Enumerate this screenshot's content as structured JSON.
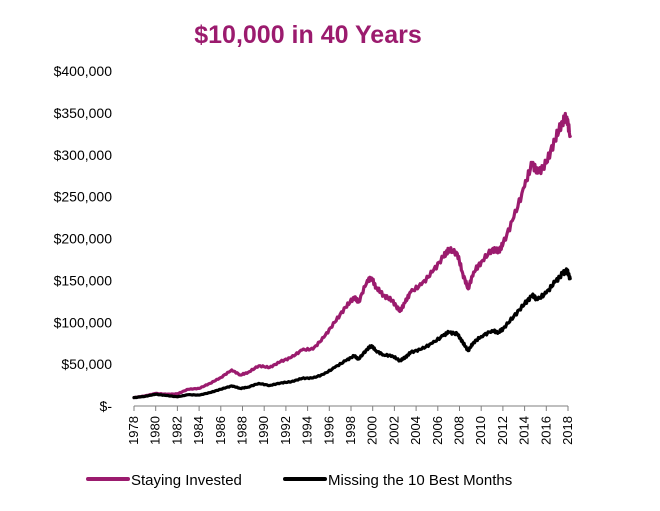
{
  "chart_data": {
    "type": "line",
    "title": "$10,000 in 40 Years",
    "title_color": "#9b1b6e",
    "xlabel": "",
    "ylabel": "",
    "x_range": [
      1978,
      2018
    ],
    "ylim": [
      0,
      400000
    ],
    "y_ticks": [
      {
        "value": 0,
        "label": "$-"
      },
      {
        "value": 50000,
        "label": "$50,000"
      },
      {
        "value": 100000,
        "label": "$100,000"
      },
      {
        "value": 150000,
        "label": "$150,000"
      },
      {
        "value": 200000,
        "label": "$200,000"
      },
      {
        "value": 250000,
        "label": "$250,000"
      },
      {
        "value": 300000,
        "label": "$300,000"
      },
      {
        "value": 350000,
        "label": "$350,000"
      },
      {
        "value": 400000,
        "label": "$400,000"
      }
    ],
    "x_ticks": [
      "1978",
      "1980",
      "1982",
      "1984",
      "1986",
      "1988",
      "1990",
      "1992",
      "1994",
      "1996",
      "1998",
      "2000",
      "2002",
      "2004",
      "2006",
      "2008",
      "2010",
      "2012",
      "2014",
      "2016",
      "2018"
    ],
    "grid": false,
    "legend_position": "bottom",
    "series": [
      {
        "name": "Staying Invested",
        "color": "#9b1b6e",
        "points": [
          [
            1978.0,
            10000
          ],
          [
            1979.0,
            12000
          ],
          [
            1980.0,
            15000
          ],
          [
            1981.0,
            14000
          ],
          [
            1982.0,
            14500
          ],
          [
            1983.0,
            20000
          ],
          [
            1984.0,
            21000
          ],
          [
            1985.0,
            27000
          ],
          [
            1986.0,
            34000
          ],
          [
            1987.0,
            43000
          ],
          [
            1987.8,
            37000
          ],
          [
            1988.5,
            40000
          ],
          [
            1989.5,
            48000
          ],
          [
            1990.5,
            46000
          ],
          [
            1991.5,
            53000
          ],
          [
            1992.5,
            58000
          ],
          [
            1993.5,
            67000
          ],
          [
            1994.5,
            68000
          ],
          [
            1995.5,
            82000
          ],
          [
            1996.5,
            100000
          ],
          [
            1997.5,
            118000
          ],
          [
            1998.3,
            130000
          ],
          [
            1998.7,
            124000
          ],
          [
            1999.5,
            150000
          ],
          [
            1999.9,
            153000
          ],
          [
            2000.3,
            142000
          ],
          [
            2001.0,
            132000
          ],
          [
            2001.8,
            126000
          ],
          [
            2002.5,
            113000
          ],
          [
            2003.0,
            124000
          ],
          [
            2003.5,
            136000
          ],
          [
            2004.5,
            145000
          ],
          [
            2005.5,
            160000
          ],
          [
            2006.5,
            178000
          ],
          [
            2007.0,
            187000
          ],
          [
            2007.8,
            182000
          ],
          [
            2008.3,
            158000
          ],
          [
            2008.8,
            140000
          ],
          [
            2009.3,
            160000
          ],
          [
            2010.0,
            172000
          ],
          [
            2011.0,
            187000
          ],
          [
            2011.6,
            185000
          ],
          [
            2012.0,
            193000
          ],
          [
            2013.0,
            225000
          ],
          [
            2014.0,
            262000
          ],
          [
            2014.7,
            290000
          ],
          [
            2015.2,
            278000
          ],
          [
            2016.0,
            290000
          ],
          [
            2016.8,
            318000
          ],
          [
            2017.5,
            340000
          ],
          [
            2017.9,
            345000
          ],
          [
            2018.2,
            322000
          ]
        ]
      },
      {
        "name": "Missing the 10 Best Months",
        "color": "#000000",
        "points": [
          [
            1978.0,
            10000
          ],
          [
            1979.0,
            11500
          ],
          [
            1980.0,
            14000
          ],
          [
            1981.0,
            12500
          ],
          [
            1982.0,
            11000
          ],
          [
            1983.0,
            13500
          ],
          [
            1984.0,
            13000
          ],
          [
            1985.0,
            16000
          ],
          [
            1986.0,
            20000
          ],
          [
            1987.0,
            24000
          ],
          [
            1987.8,
            21000
          ],
          [
            1988.5,
            22500
          ],
          [
            1989.5,
            27000
          ],
          [
            1990.5,
            24500
          ],
          [
            1991.5,
            27500
          ],
          [
            1992.5,
            29000
          ],
          [
            1993.5,
            33000
          ],
          [
            1994.5,
            33500
          ],
          [
            1995.5,
            38000
          ],
          [
            1996.5,
            46000
          ],
          [
            1997.5,
            54000
          ],
          [
            1998.3,
            60000
          ],
          [
            1998.7,
            56000
          ],
          [
            1999.5,
            68000
          ],
          [
            1999.9,
            72000
          ],
          [
            2000.3,
            66000
          ],
          [
            2001.0,
            61000
          ],
          [
            2001.8,
            60000
          ],
          [
            2002.5,
            54000
          ],
          [
            2003.0,
            58000
          ],
          [
            2003.5,
            64000
          ],
          [
            2004.5,
            68000
          ],
          [
            2005.5,
            75000
          ],
          [
            2006.5,
            84000
          ],
          [
            2007.0,
            88000
          ],
          [
            2007.8,
            86000
          ],
          [
            2008.3,
            76000
          ],
          [
            2008.8,
            66000
          ],
          [
            2009.3,
            76000
          ],
          [
            2010.0,
            83000
          ],
          [
            2011.0,
            90000
          ],
          [
            2011.6,
            88000
          ],
          [
            2012.0,
            92000
          ],
          [
            2013.0,
            107000
          ],
          [
            2014.0,
            122000
          ],
          [
            2014.7,
            132000
          ],
          [
            2015.2,
            127000
          ],
          [
            2016.0,
            135000
          ],
          [
            2016.8,
            148000
          ],
          [
            2017.5,
            158000
          ],
          [
            2017.9,
            162000
          ],
          [
            2018.2,
            152000
          ]
        ]
      }
    ]
  }
}
